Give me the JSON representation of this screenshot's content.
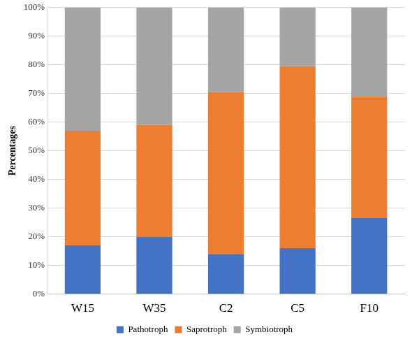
{
  "chart_data": {
    "type": "bar",
    "stacked": true,
    "y_label": "Percentages",
    "categories": [
      "W15",
      "W35",
      "C2",
      "C5",
      "F10"
    ],
    "series": [
      {
        "name": "Pathotroph",
        "color": "#4472c4",
        "values": [
          17,
          20,
          14,
          16,
          26.5
        ]
      },
      {
        "name": "Saprotroph",
        "color": "#ed7d31",
        "values": [
          40,
          39,
          56.5,
          63.5,
          42.5
        ]
      },
      {
        "name": "Symbiotroph",
        "color": "#a5a5a5",
        "values": [
          43,
          41,
          29.5,
          20.5,
          31
        ]
      }
    ],
    "ylim": [
      0,
      100
    ],
    "yticks": [
      {
        "value": 0,
        "label": "0%"
      },
      {
        "value": 10,
        "label": "10%"
      },
      {
        "value": 20,
        "label": "20%"
      },
      {
        "value": 30,
        "label": "30%"
      },
      {
        "value": 40,
        "label": "40%"
      },
      {
        "value": 50,
        "label": "50%"
      },
      {
        "value": 60,
        "label": "60%"
      },
      {
        "value": 70,
        "label": "70%"
      },
      {
        "value": 80,
        "label": "80%"
      },
      {
        "value": 90,
        "label": "90%"
      },
      {
        "value": 100,
        "label": "100%"
      }
    ],
    "grid": true,
    "legend": "bottom"
  }
}
